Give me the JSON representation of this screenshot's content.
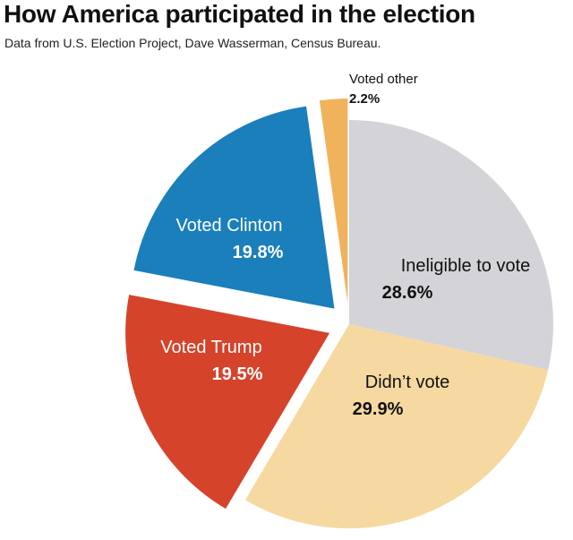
{
  "chart_data": {
    "type": "pie",
    "title": "How America participated in the election",
    "subtitle": "Data from U.S. Election Project, Dave Wasserman, Census Bureau.",
    "slices": [
      {
        "label": "Ineligible to vote",
        "value": 28.6,
        "value_label": "28.6%",
        "color": "#d3d3d8",
        "label_color": "#111111",
        "exploded": false
      },
      {
        "label": "Didn’t vote",
        "value": 29.9,
        "value_label": "29.9%",
        "color": "#f6d9a0",
        "label_color": "#111111",
        "exploded": false
      },
      {
        "label": "Voted Trump",
        "value": 19.5,
        "value_label": "19.5%",
        "color": "#d5432b",
        "label_color": "#ffffff",
        "exploded": true
      },
      {
        "label": "Voted Clinton",
        "value": 19.8,
        "value_label": "19.8%",
        "color": "#1a7fbb",
        "label_color": "#ffffff",
        "exploded": true
      },
      {
        "label": "Voted other",
        "value": 2.2,
        "value_label": "2.2%",
        "color": "#f0b35c",
        "label_color": "#111111",
        "exploded": true
      }
    ],
    "start_angle": "12 o'clock",
    "direction": "clockwise",
    "legend": "none"
  }
}
